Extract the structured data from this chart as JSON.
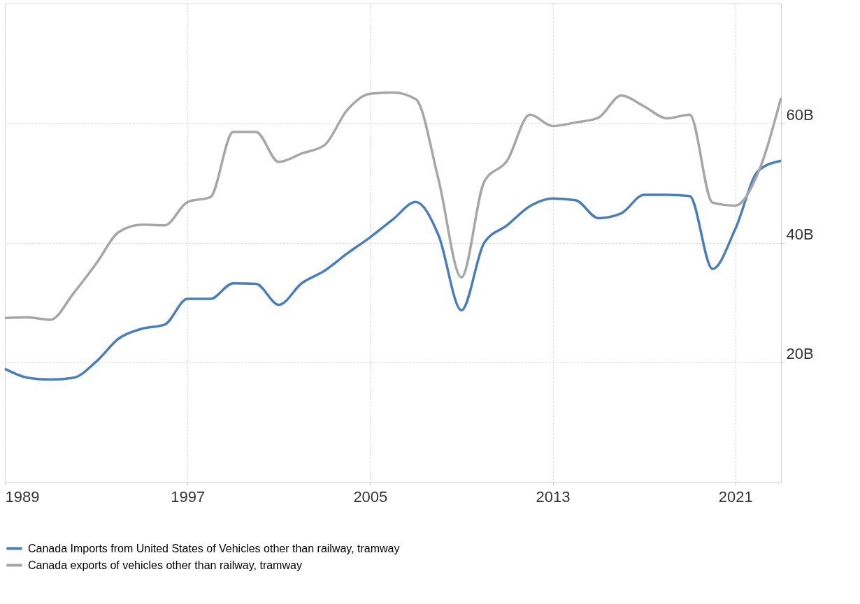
{
  "chart_data": {
    "type": "line",
    "x": [
      1989,
      1990,
      1991,
      1992,
      1993,
      1994,
      1995,
      1996,
      1997,
      1998,
      1999,
      2000,
      2001,
      2002,
      2003,
      2004,
      2005,
      2006,
      2007,
      2008,
      2009,
      2010,
      2011,
      2012,
      2013,
      2014,
      2015,
      2016,
      2017,
      2018,
      2019,
      2020,
      2021,
      2022,
      2023
    ],
    "series": [
      {
        "name": "Canada Imports from United States of Vehicles other than railway, tramway",
        "color": "#4a7ebb",
        "values": [
          18.9,
          17.4,
          17.1,
          17.4,
          20.1,
          24.0,
          25.6,
          26.3,
          30.6,
          30.6,
          33.2,
          33.1,
          29.6,
          33.2,
          35.3,
          38.2,
          40.9,
          43.9,
          46.8,
          41.2,
          28.7,
          40.0,
          42.9,
          46.1,
          47.4,
          47.1,
          44.1,
          44.9,
          48.0,
          48.0,
          47.8,
          35.6,
          42.3,
          52.0,
          53.7
        ]
      },
      {
        "name": "Canada exports of vehicles other than railway, tramway",
        "color": "#a6a6a6",
        "values": [
          27.4,
          27.5,
          27.1,
          31.5,
          36.5,
          41.8,
          43.0,
          42.9,
          46.8,
          47.6,
          58.5,
          58.5,
          53.5,
          54.9,
          56.3,
          62.2,
          64.9,
          65.1,
          64.0,
          50.5,
          34.2,
          50.2,
          53.7,
          61.4,
          59.5,
          60.1,
          60.9,
          64.6,
          62.8,
          60.8,
          61.4,
          46.7,
          46.2,
          51.7,
          64.2
        ]
      }
    ],
    "xlim": [
      1989,
      2023
    ],
    "xticks": [
      1989,
      1997,
      2005,
      2013,
      2021
    ],
    "ylim": [
      0,
      80
    ],
    "yticks": [
      {
        "value": 20,
        "label": "20B"
      },
      {
        "value": 40,
        "label": "40B"
      },
      {
        "value": 60,
        "label": "60B"
      }
    ],
    "grid": true,
    "legend": "bottom",
    "line_style": "solid",
    "marker": "none"
  }
}
